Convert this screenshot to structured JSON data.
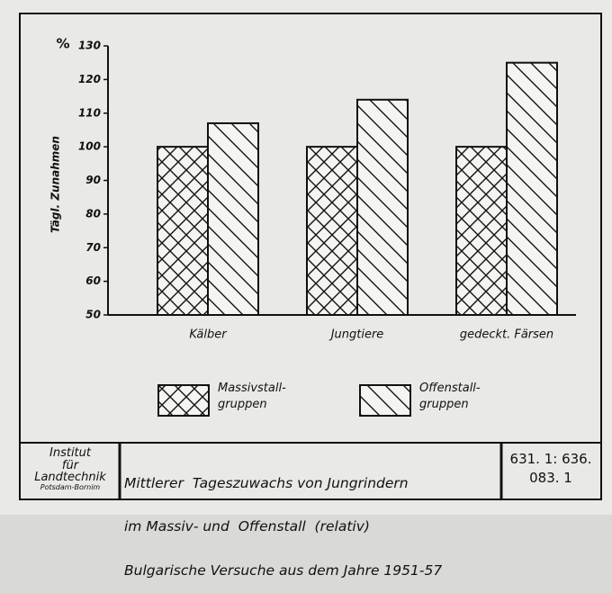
{
  "chart_data": {
    "type": "bar",
    "y_label": "Tägl. Zunahmen",
    "y_unit": "%",
    "categories": [
      "Kälber",
      "Jungtiere",
      "gedeckt. Färsen"
    ],
    "series": [
      {
        "name": "Massivstall-\ngruppen",
        "color": "#111111",
        "hatch": "cross",
        "values": [
          100,
          100,
          100
        ]
      },
      {
        "name": "Offenstall-\ngruppen",
        "color": "#111111",
        "hatch": "diagonal",
        "values": [
          107,
          114,
          125
        ]
      }
    ],
    "ylim": [
      50,
      130
    ],
    "yticks": [
      50,
      60,
      70,
      80,
      90,
      100,
      110,
      120,
      130
    ],
    "grid": false
  },
  "footer": {
    "institute": [
      "Institut",
      "für",
      "Landtechnik",
      "Potsdam-Bornim"
    ],
    "title": [
      "Mittlerer  Tageszuwachs von Jungrindern",
      "im Massiv- und  Offenstall  (relativ)",
      "Bulgarische Versuche aus dem Jahre 1951-57"
    ],
    "code": [
      "631. 1: 636.",
      "083. 1"
    ]
  }
}
